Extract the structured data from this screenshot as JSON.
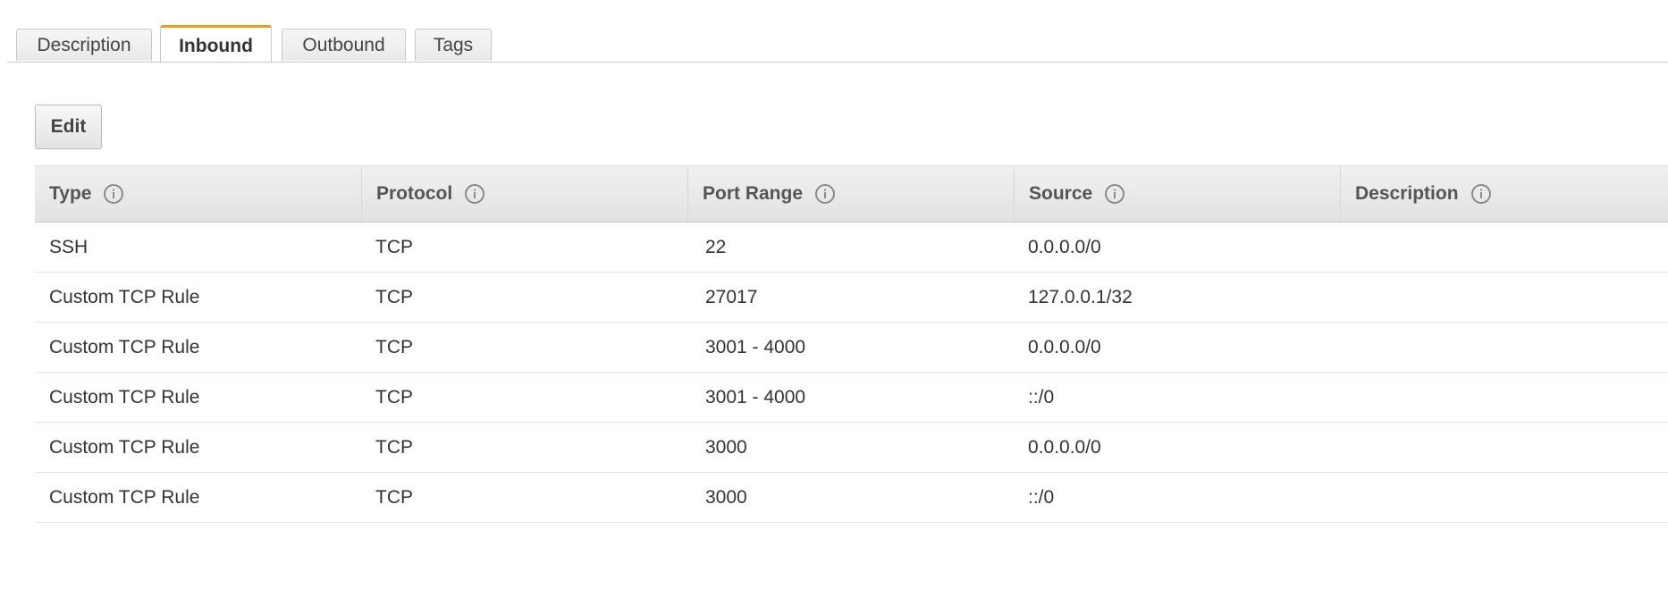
{
  "tabs": [
    {
      "label": "Description",
      "active": false
    },
    {
      "label": "Inbound",
      "active": true
    },
    {
      "label": "Outbound",
      "active": false
    },
    {
      "label": "Tags",
      "active": false
    }
  ],
  "toolbar": {
    "edit_label": "Edit"
  },
  "table": {
    "columns": [
      "Type",
      "Protocol",
      "Port Range",
      "Source",
      "Description"
    ],
    "rows": [
      [
        "SSH",
        "TCP",
        "22",
        "0.0.0.0/0",
        ""
      ],
      [
        "Custom TCP Rule",
        "TCP",
        "27017",
        "127.0.0.1/32",
        ""
      ],
      [
        "Custom TCP Rule",
        "TCP",
        "3001 - 4000",
        "0.0.0.0/0",
        ""
      ],
      [
        "Custom TCP Rule",
        "TCP",
        "3001 - 4000",
        "::/0",
        ""
      ],
      [
        "Custom TCP Rule",
        "TCP",
        "3000",
        "0.0.0.0/0",
        ""
      ],
      [
        "Custom TCP Rule",
        "TCP",
        "3000",
        "::/0",
        ""
      ]
    ]
  },
  "icons": {
    "column_info": "info-circle-icon"
  },
  "colors": {
    "active_tab_accent": "#ec9a1d",
    "header_bg": "#e8e8e8"
  }
}
